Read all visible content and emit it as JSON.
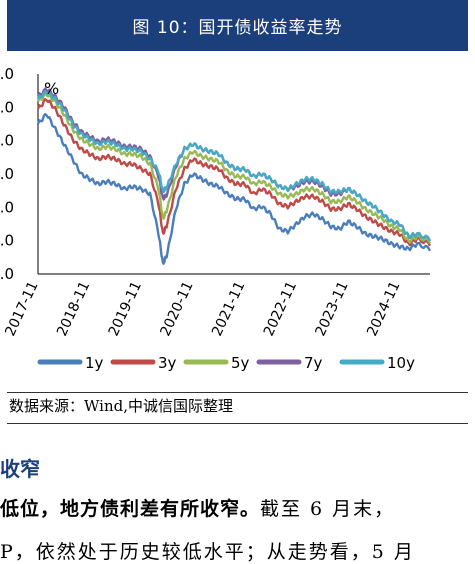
{
  "figure_title": "图 10：国开债收益率走势",
  "source_text": "数据来源：Wind,中诚信国际整理",
  "section_heading": "收窄",
  "body_line1_bold": "低位，地方债利差有所收窄。",
  "body_line1_rest": "截至 6 月末，",
  "body_line2": "P，依然处于历史较低水平；从走势看，5 月",
  "chart_data": {
    "type": "line",
    "ylabel": "%",
    "y_tick_labels": [
      ".0",
      ".0",
      ".0",
      ".0",
      ".0",
      ".0",
      ".0"
    ],
    "ylim": [
      1.0,
      5.0
    ],
    "x_tick_labels": [
      "2017-11",
      "2018-11",
      "2019-11",
      "2020-11",
      "2021-11",
      "2022-11",
      "2023-11",
      "2024-11"
    ],
    "xlim": [
      "2017-11",
      "2025-06"
    ],
    "legend_position": "bottom",
    "x": [
      "2017-11",
      "2018-01",
      "2018-03",
      "2018-05",
      "2018-07",
      "2018-09",
      "2018-11",
      "2019-01",
      "2019-03",
      "2019-05",
      "2019-07",
      "2019-09",
      "2019-11",
      "2020-01",
      "2020-03",
      "2020-04",
      "2020-05",
      "2020-07",
      "2020-09",
      "2020-11",
      "2021-01",
      "2021-03",
      "2021-05",
      "2021-07",
      "2021-09",
      "2021-11",
      "2022-01",
      "2022-03",
      "2022-05",
      "2022-07",
      "2022-09",
      "2022-11",
      "2023-01",
      "2023-03",
      "2023-05",
      "2023-07",
      "2023-09",
      "2023-11",
      "2024-01",
      "2024-03",
      "2024-05",
      "2024-07",
      "2024-09",
      "2024-11",
      "2025-01",
      "2025-03",
      "2025-06"
    ],
    "series": [
      {
        "name": "1y",
        "color": "#4a7ebb",
        "values": [
          4.0,
          4.2,
          3.9,
          3.6,
          3.3,
          3.0,
          2.9,
          2.8,
          2.85,
          2.8,
          2.7,
          2.75,
          2.7,
          2.6,
          1.8,
          1.2,
          1.4,
          2.3,
          2.8,
          3.0,
          2.9,
          2.8,
          2.75,
          2.6,
          2.5,
          2.5,
          2.3,
          2.35,
          2.2,
          1.9,
          1.85,
          2.0,
          2.15,
          2.2,
          2.1,
          1.95,
          1.9,
          2.05,
          1.95,
          1.8,
          1.75,
          1.7,
          1.6,
          1.55,
          1.5,
          1.6,
          1.5
        ]
      },
      {
        "name": "3y",
        "color": "#be4b48",
        "values": [
          4.3,
          4.5,
          4.3,
          4.0,
          3.7,
          3.5,
          3.4,
          3.3,
          3.35,
          3.3,
          3.2,
          3.2,
          3.1,
          3.0,
          2.4,
          1.8,
          2.0,
          2.7,
          3.1,
          3.3,
          3.2,
          3.15,
          3.1,
          2.9,
          2.8,
          2.8,
          2.6,
          2.7,
          2.6,
          2.4,
          2.35,
          2.45,
          2.55,
          2.55,
          2.45,
          2.3,
          2.3,
          2.4,
          2.3,
          2.15,
          2.05,
          1.95,
          1.85,
          1.8,
          1.6,
          1.7,
          1.6
        ]
      },
      {
        "name": "5y",
        "color": "#98b954",
        "values": [
          4.45,
          4.6,
          4.45,
          4.2,
          3.9,
          3.7,
          3.6,
          3.5,
          3.55,
          3.5,
          3.4,
          3.4,
          3.35,
          3.2,
          2.7,
          2.1,
          2.3,
          2.95,
          3.3,
          3.45,
          3.35,
          3.3,
          3.25,
          3.05,
          2.95,
          2.95,
          2.8,
          2.85,
          2.75,
          2.6,
          2.55,
          2.6,
          2.7,
          2.7,
          2.6,
          2.45,
          2.45,
          2.55,
          2.45,
          2.3,
          2.2,
          2.1,
          1.95,
          1.9,
          1.65,
          1.75,
          1.65
        ]
      },
      {
        "name": "7y",
        "color": "#7d60a0",
        "values": [
          4.55,
          4.7,
          4.55,
          4.35,
          4.05,
          3.85,
          3.75,
          3.65,
          3.7,
          3.65,
          3.55,
          3.55,
          3.5,
          3.35,
          2.95,
          2.5,
          2.6,
          3.15,
          3.5,
          3.6,
          3.5,
          3.45,
          3.4,
          3.2,
          3.1,
          3.1,
          2.95,
          3.0,
          2.9,
          2.75,
          2.7,
          2.75,
          2.85,
          2.85,
          2.75,
          2.6,
          2.6,
          2.7,
          2.6,
          2.45,
          2.35,
          2.2,
          2.05,
          2.0,
          1.75,
          1.8,
          1.7
        ]
      },
      {
        "name": "10y",
        "color": "#46aac4",
        "values": [
          4.5,
          4.65,
          4.5,
          4.3,
          4.0,
          3.8,
          3.7,
          3.6,
          3.65,
          3.6,
          3.5,
          3.5,
          3.45,
          3.3,
          3.05,
          2.65,
          2.75,
          3.2,
          3.5,
          3.6,
          3.5,
          3.45,
          3.4,
          3.2,
          3.1,
          3.1,
          2.95,
          3.0,
          2.9,
          2.75,
          2.7,
          2.8,
          2.9,
          2.9,
          2.8,
          2.65,
          2.65,
          2.7,
          2.6,
          2.45,
          2.35,
          2.2,
          2.05,
          2.0,
          1.75,
          1.8,
          1.7
        ]
      }
    ]
  }
}
